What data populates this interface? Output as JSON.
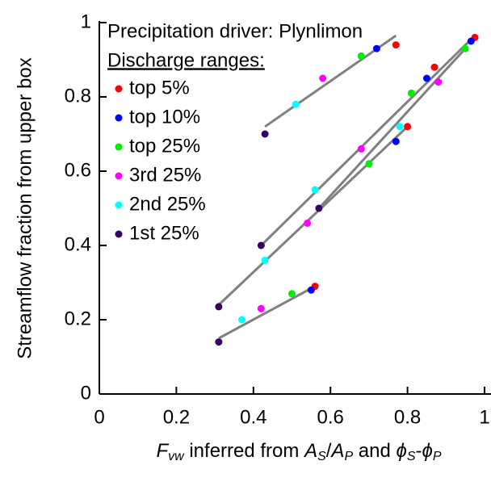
{
  "chart_data": {
    "type": "scatter",
    "legend_title": "Precipitation driver: Plynlimon",
    "legend_subtitle": "Discharge ranges:",
    "ylabel": "Streamflow fraction from upper box",
    "xlabel": [
      {
        "text": "F",
        "italic": true,
        "sub": false
      },
      {
        "text": "vw",
        "italic": true,
        "sub": true
      },
      {
        "text": " inferred from ",
        "italic": false,
        "sub": false
      },
      {
        "text": "A",
        "italic": true,
        "sub": false
      },
      {
        "text": "S",
        "italic": true,
        "sub": true
      },
      {
        "text": "/",
        "italic": false,
        "sub": false
      },
      {
        "text": "A",
        "italic": true,
        "sub": false
      },
      {
        "text": "P",
        "italic": true,
        "sub": true
      },
      {
        "text": " and ",
        "italic": false,
        "sub": false
      },
      {
        "text": "ϕ",
        "italic": true,
        "sub": false
      },
      {
        "text": "S",
        "italic": true,
        "sub": true
      },
      {
        "text": "-",
        "italic": false,
        "sub": false
      },
      {
        "text": "ϕ",
        "italic": true,
        "sub": false
      },
      {
        "text": "P",
        "italic": true,
        "sub": true
      }
    ],
    "xlim": [
      0,
      1
    ],
    "ylim": [
      0,
      1
    ],
    "xticks": [
      0,
      0.2,
      0.4,
      0.6,
      0.8,
      1
    ],
    "yticks": [
      0,
      0.2,
      0.4,
      0.6,
      0.8,
      1
    ],
    "fit_color": "#808080",
    "fit_lines": [
      {
        "x": [
          0.31,
          0.56
        ],
        "y": [
          0.15,
          0.29
        ]
      },
      {
        "x": [
          0.31,
          0.8
        ],
        "y": [
          0.24,
          0.72
        ]
      },
      {
        "x": [
          0.42,
          0.97
        ],
        "y": [
          0.4,
          0.96
        ]
      },
      {
        "x": [
          0.57,
          0.95
        ],
        "y": [
          0.5,
          0.93
        ]
      },
      {
        "x": [
          0.43,
          0.77
        ],
        "y": [
          0.72,
          0.965
        ]
      }
    ],
    "series": [
      {
        "name": "top 5%",
        "color": "#ff0000",
        "x": [
          0.56,
          0.8,
          0.87,
          0.975,
          0.77
        ],
        "values": [
          0.29,
          0.72,
          0.88,
          0.96,
          0.94
        ]
      },
      {
        "name": "top 10%",
        "color": "#0000ff",
        "x": [
          0.55,
          0.77,
          0.85,
          0.965,
          0.72
        ],
        "values": [
          0.28,
          0.68,
          0.85,
          0.95,
          0.93
        ]
      },
      {
        "name": "top 25%",
        "color": "#00ee00",
        "x": [
          0.5,
          0.7,
          0.81,
          0.95,
          0.68
        ],
        "values": [
          0.27,
          0.62,
          0.81,
          0.93,
          0.91
        ]
      },
      {
        "name": "3rd 25%",
        "color": "#ff00ff",
        "x": [
          0.42,
          0.54,
          0.68,
          0.88,
          0.58
        ],
        "values": [
          0.23,
          0.46,
          0.66,
          0.84,
          0.85
        ]
      },
      {
        "name": "2nd 25%",
        "color": "#00ffff",
        "x": [
          0.37,
          0.43,
          0.56,
          0.78,
          0.51
        ],
        "values": [
          0.2,
          0.36,
          0.55,
          0.72,
          0.78
        ]
      },
      {
        "name": "1st 25%",
        "color": "#330066",
        "x": [
          0.31,
          0.31,
          0.42,
          0.57,
          0.43
        ],
        "values": [
          0.14,
          0.235,
          0.4,
          0.5,
          0.7
        ]
      }
    ]
  }
}
